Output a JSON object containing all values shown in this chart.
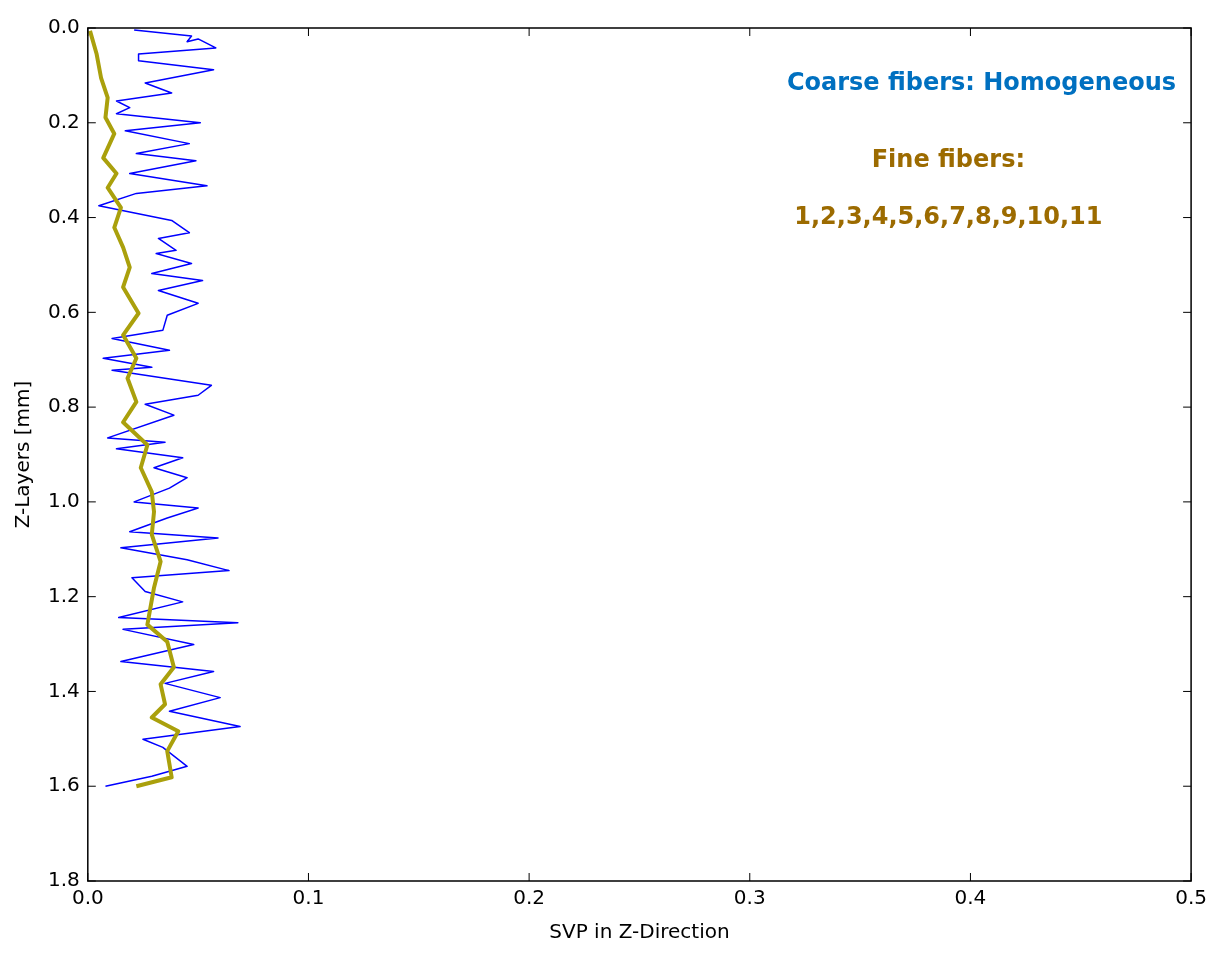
{
  "chart_data": {
    "type": "line",
    "xlabel": "SVP in Z-Direction",
    "ylabel": "Z-Layers [mm]",
    "xlim": [
      0,
      0.5
    ],
    "xticks": [
      {
        "value": 0,
        "label": "0.0"
      },
      0.1,
      0.2,
      0.3,
      0.4,
      0.5
    ],
    "ylim": [
      1.8,
      0
    ],
    "yticks": [
      {
        "value": 0,
        "label": "0.0"
      },
      0.2,
      0.4,
      0.6,
      0.8,
      {
        "value": 1,
        "label": "1.0"
      },
      1.2,
      1.4,
      1.6,
      1.8
    ],
    "grid": false,
    "legend": false,
    "marker": "none",
    "line_style": "solid",
    "annotations": [
      "Coarse fibers: Homogeneous",
      "Fine fibers:",
      "1,2,3,4,5,6,7,8,9,10,11"
    ],
    "series": [
      {
        "color": "#0000ff",
        "x": [
          0.021,
          0.047,
          0.045,
          0.05,
          0.058,
          0.023,
          0.023,
          0.057,
          0.026,
          0.038,
          0.013,
          0.019,
          0.013,
          0.051,
          0.017,
          0.046,
          0.022,
          0.049,
          0.019,
          0.054,
          0.022,
          0.005,
          0.038,
          0.046,
          0.032,
          0.04,
          0.031,
          0.047,
          0.029,
          0.052,
          0.032,
          0.05,
          0.036,
          0.034,
          0.011,
          0.037,
          0.007,
          0.029,
          0.011,
          0.056,
          0.05,
          0.026,
          0.039,
          0.009,
          0.035,
          0.013,
          0.043,
          0.03,
          0.045,
          0.037,
          0.021,
          0.05,
          0.036,
          0.019,
          0.059,
          0.015,
          0.045,
          0.064,
          0.02,
          0.026,
          0.043,
          0.014,
          0.068,
          0.016,
          0.048,
          0.015,
          0.057,
          0.035,
          0.06,
          0.037,
          0.069,
          0.025,
          0.034,
          0.045,
          0.029,
          0.008
        ],
        "values": [
          0.004,
          0.017,
          0.029,
          0.023,
          0.042,
          0.055,
          0.069,
          0.088,
          0.116,
          0.137,
          0.154,
          0.168,
          0.181,
          0.2,
          0.217,
          0.244,
          0.265,
          0.28,
          0.307,
          0.333,
          0.349,
          0.375,
          0.406,
          0.432,
          0.444,
          0.469,
          0.476,
          0.497,
          0.518,
          0.533,
          0.554,
          0.581,
          0.606,
          0.638,
          0.655,
          0.68,
          0.697,
          0.716,
          0.722,
          0.754,
          0.775,
          0.794,
          0.817,
          0.865,
          0.874,
          0.888,
          0.907,
          0.928,
          0.949,
          0.971,
          1.0,
          1.013,
          1.034,
          1.063,
          1.076,
          1.097,
          1.122,
          1.145,
          1.16,
          1.189,
          1.211,
          1.244,
          1.255,
          1.269,
          1.301,
          1.337,
          1.358,
          1.383,
          1.413,
          1.442,
          1.474,
          1.501,
          1.518,
          1.558,
          1.579,
          1.6
        ]
      },
      {
        "color": "#aaa00c",
        "x": [
          0.001,
          0.004,
          0.006,
          0.009,
          0.008,
          0.012,
          0.007,
          0.013,
          0.009,
          0.015,
          0.012,
          0.016,
          0.019,
          0.016,
          0.023,
          0.016,
          0.022,
          0.018,
          0.022,
          0.016,
          0.027,
          0.024,
          0.029,
          0.03,
          0.029,
          0.033,
          0.03,
          0.027,
          0.036,
          0.039,
          0.033,
          0.035,
          0.029,
          0.041,
          0.036,
          0.038,
          0.022
        ],
        "values": [
          0.006,
          0.055,
          0.105,
          0.147,
          0.189,
          0.223,
          0.274,
          0.307,
          0.337,
          0.379,
          0.421,
          0.463,
          0.505,
          0.547,
          0.602,
          0.648,
          0.697,
          0.739,
          0.789,
          0.832,
          0.88,
          0.928,
          0.979,
          1.021,
          1.069,
          1.126,
          1.181,
          1.259,
          1.295,
          1.349,
          1.385,
          1.427,
          1.455,
          1.484,
          1.526,
          1.581,
          1.6
        ]
      }
    ]
  }
}
